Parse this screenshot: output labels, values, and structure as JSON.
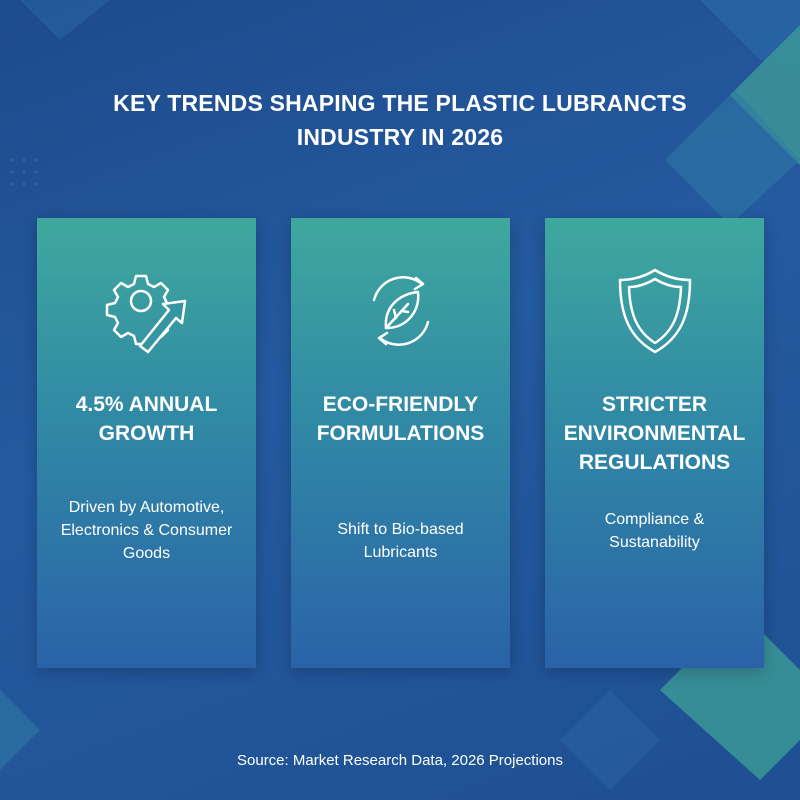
{
  "header": {
    "title": "KEY TRENDS SHAPING THE PLASTIC LUBRANCTS INDUSTRY IN 2026"
  },
  "cards": [
    {
      "heading": "4.5% ANNUAL GROWTH",
      "text": "Driven by Automotive, Electronics & Consumer Goods"
    },
    {
      "heading": "ECO-FRIENDLY FORMULATIONS",
      "text": "Shift to Bio-based Lubricants"
    },
    {
      "heading": "STRICTER ENVIRONMENTAL REGULATIONS",
      "text": "Compliance & Sustanability"
    }
  ],
  "footer": {
    "source": "Source: Market Research Data, 2026 Projections"
  }
}
